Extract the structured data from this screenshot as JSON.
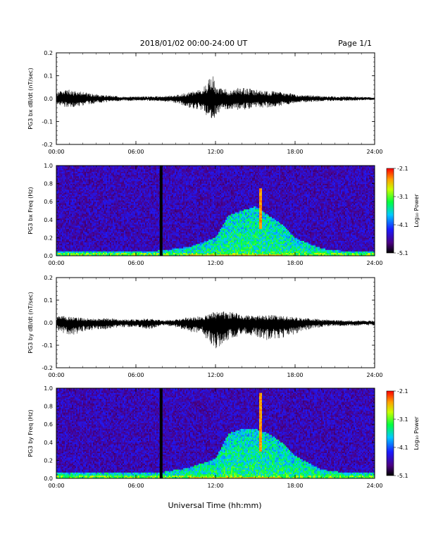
{
  "header": {
    "title": "2018/01/02   00:00-24:00 UT",
    "page": "Page 1/1"
  },
  "footer": {
    "xlabel": "Universal Time (hh:mm)"
  },
  "chart_data": [
    {
      "type": "line",
      "ylabel": "PG3 bx dB/dt (nT/sec)",
      "x_ticks": [
        "00:00",
        "06:00",
        "12:00",
        "18:00",
        "24:00"
      ],
      "xlim": [
        0,
        24
      ],
      "ylim": [
        -0.2,
        0.2
      ],
      "y_ticks": [
        "0.2",
        "0.1",
        "0.0",
        "-0.1",
        "-0.2"
      ],
      "series": [
        {
          "x": [
            0,
            1,
            2,
            3,
            4,
            5,
            6,
            7,
            8,
            9,
            10,
            11,
            11.8,
            12,
            13,
            14,
            15,
            16,
            17,
            18,
            19,
            20,
            21,
            22,
            23,
            24
          ],
          "envelope_max": [
            0.03,
            0.04,
            0.03,
            0.02,
            0.015,
            0.01,
            0.01,
            0.01,
            0.012,
            0.015,
            0.03,
            0.04,
            0.11,
            0.05,
            0.04,
            0.05,
            0.04,
            0.035,
            0.03,
            0.02,
            0.015,
            0.012,
            0.01,
            0.01,
            0.008,
            0.006
          ],
          "envelope_min": [
            -0.03,
            -0.04,
            -0.03,
            -0.02,
            -0.015,
            -0.01,
            -0.01,
            -0.01,
            -0.012,
            -0.02,
            -0.04,
            -0.05,
            -0.11,
            -0.07,
            -0.05,
            -0.05,
            -0.04,
            -0.04,
            -0.03,
            -0.02,
            -0.015,
            -0.012,
            -0.01,
            -0.01,
            -0.008,
            -0.006
          ]
        }
      ]
    },
    {
      "type": "heatmap",
      "ylabel": "PG3 bx Freq (Hz)",
      "colorbar_label": "Log₁₀ Power",
      "colorbar_ticks": [
        "-2.1",
        "-3.1",
        "-4.1",
        "-5.1"
      ],
      "clim": [
        -5.1,
        -2.1
      ],
      "x_ticks": [
        "00:00",
        "06:00",
        "12:00",
        "18:00",
        "24:00"
      ],
      "xlim": [
        0,
        24
      ],
      "ylim": [
        0,
        1.0
      ],
      "y_ticks": [
        "1.0",
        "0.8",
        "0.6",
        "0.4",
        "0.2",
        "0.0"
      ],
      "data_gap_hour": 7.9,
      "activity": {
        "hours": [
          0,
          2,
          4,
          6,
          8,
          10,
          12,
          13,
          14,
          15,
          16,
          17,
          18,
          20,
          22,
          24
        ],
        "upper_freq_hz": [
          0.05,
          0.05,
          0.05,
          0.05,
          0.06,
          0.1,
          0.2,
          0.45,
          0.5,
          0.55,
          0.45,
          0.35,
          0.2,
          0.08,
          0.05,
          0.05
        ]
      },
      "narrowband_line": {
        "hour": 15.4,
        "freq_range": [
          0.3,
          0.75
        ]
      }
    },
    {
      "type": "line",
      "ylabel": "PG3 by dB/dt (nT/sec)",
      "x_ticks": [
        "00:00",
        "06:00",
        "12:00",
        "18:00",
        "24:00"
      ],
      "xlim": [
        0,
        24
      ],
      "ylim": [
        -0.2,
        0.2
      ],
      "y_ticks": [
        "0.2",
        "0.1",
        "0.0",
        "-0.1",
        "-0.2"
      ],
      "series": [
        {
          "x": [
            0,
            1,
            2,
            3,
            4,
            5,
            6,
            7,
            8,
            9,
            10,
            11,
            12,
            13,
            14,
            15,
            16,
            17,
            18,
            19,
            20,
            21,
            22,
            23,
            24
          ],
          "envelope_max": [
            0.03,
            0.03,
            0.02,
            0.02,
            0.02,
            0.015,
            0.015,
            0.02,
            0.01,
            0.015,
            0.025,
            0.03,
            0.05,
            0.05,
            0.04,
            0.03,
            0.035,
            0.03,
            0.025,
            0.02,
            0.015,
            0.012,
            0.01,
            0.01,
            0.01
          ],
          "envelope_min": [
            -0.03,
            -0.06,
            -0.04,
            -0.03,
            -0.03,
            -0.02,
            -0.02,
            -0.03,
            -0.012,
            -0.02,
            -0.04,
            -0.05,
            -0.12,
            -0.08,
            -0.05,
            -0.06,
            -0.08,
            -0.07,
            -0.05,
            -0.03,
            -0.02,
            -0.015,
            -0.015,
            -0.012,
            -0.012
          ]
        }
      ]
    },
    {
      "type": "heatmap",
      "ylabel": "PG3 by Freq (Hz)",
      "colorbar_label": "Log₁₀ Power",
      "colorbar_ticks": [
        "-2.1",
        "-3.1",
        "-4.1",
        "-5.1"
      ],
      "clim": [
        -5.1,
        -2.1
      ],
      "x_ticks": [
        "00:00",
        "06:00",
        "12:00",
        "18:00",
        "24:00"
      ],
      "xlim": [
        0,
        24
      ],
      "ylim": [
        0,
        1.0
      ],
      "y_ticks": [
        "1.0",
        "0.8",
        "0.6",
        "0.4",
        "0.2",
        "0.0"
      ],
      "data_gap_hour": 7.9,
      "activity": {
        "hours": [
          0,
          2,
          4,
          6,
          8,
          10,
          12,
          13,
          14,
          15,
          16,
          17,
          18,
          20,
          22,
          24
        ],
        "upper_freq_hz": [
          0.06,
          0.06,
          0.06,
          0.06,
          0.07,
          0.12,
          0.22,
          0.5,
          0.55,
          0.55,
          0.5,
          0.4,
          0.25,
          0.1,
          0.06,
          0.06
        ]
      },
      "narrowband_line": {
        "hour": 15.4,
        "freq_range": [
          0.3,
          0.95
        ]
      }
    }
  ]
}
